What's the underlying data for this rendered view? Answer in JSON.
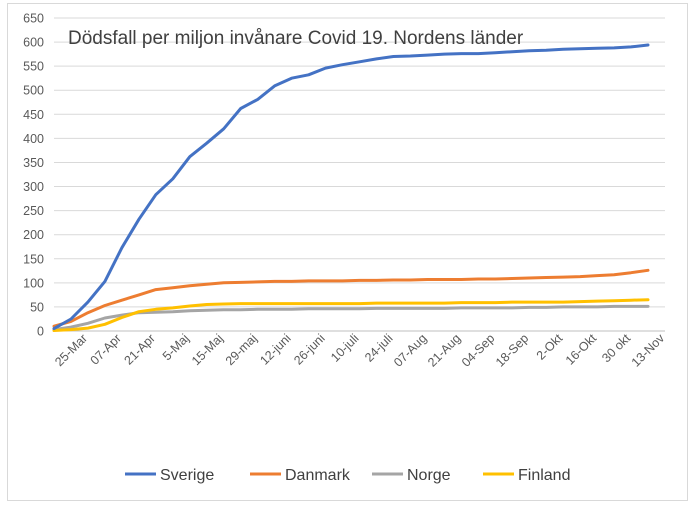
{
  "chart_data": {
    "type": "line",
    "title": "Dödsfall per miljon invånare Covid 19. Nordens länder",
    "xlabel": "",
    "ylabel": "",
    "ylim": [
      0,
      650
    ],
    "y_ticks": [
      0,
      50,
      100,
      150,
      200,
      250,
      300,
      350,
      400,
      450,
      500,
      550,
      600,
      650
    ],
    "x_tick_labels": [
      "25-Mar",
      "07-Apr",
      "21-Apr",
      "5-Maj",
      "15-Maj",
      "29-maj",
      "12-juni",
      "26-juni",
      "10-juli",
      "24-juli",
      "07-Aug",
      "21-Aug",
      "04-Sep",
      "18-Sep",
      "2-Okt",
      "16-Okt",
      "30 okt",
      "13-Nov"
    ],
    "grid": true,
    "legend_position": "bottom",
    "series": [
      {
        "name": "Sverige",
        "color": "#4472c4",
        "values": [
          5,
          25,
          60,
          103,
          173,
          232,
          283,
          316,
          362,
          390,
          420,
          462,
          481,
          509,
          525,
          532,
          546,
          553,
          559,
          565,
          570,
          571,
          573,
          575,
          576,
          576,
          578,
          580,
          582,
          583,
          585,
          586,
          587,
          588,
          590,
          594
        ]
      },
      {
        "name": "Danmark",
        "color": "#ed7d31",
        "values": [
          10,
          20,
          38,
          53,
          64,
          75,
          86,
          90,
          94,
          97,
          100,
          101,
          102,
          103,
          103,
          104,
          104,
          104,
          105,
          105,
          106,
          106,
          107,
          107,
          107,
          108,
          108,
          109,
          110,
          111,
          112,
          113,
          115,
          117,
          121,
          126
        ]
      },
      {
        "name": "Norge",
        "color": "#a5a5a5",
        "values": [
          3,
          8,
          16,
          27,
          33,
          38,
          39,
          40,
          42,
          43,
          44,
          44,
          45,
          45,
          45,
          46,
          46,
          46,
          46,
          47,
          47,
          47,
          47,
          47,
          48,
          48,
          48,
          48,
          49,
          49,
          50,
          50,
          50,
          51,
          51,
          51
        ]
      },
      {
        "name": "Finland",
        "color": "#ffc000",
        "values": [
          1,
          3,
          6,
          14,
          28,
          40,
          45,
          48,
          52,
          55,
          56,
          57,
          57,
          57,
          57,
          57,
          57,
          57,
          57,
          58,
          58,
          58,
          58,
          58,
          59,
          59,
          59,
          60,
          60,
          60,
          60,
          61,
          62,
          63,
          64,
          65
        ]
      }
    ]
  }
}
